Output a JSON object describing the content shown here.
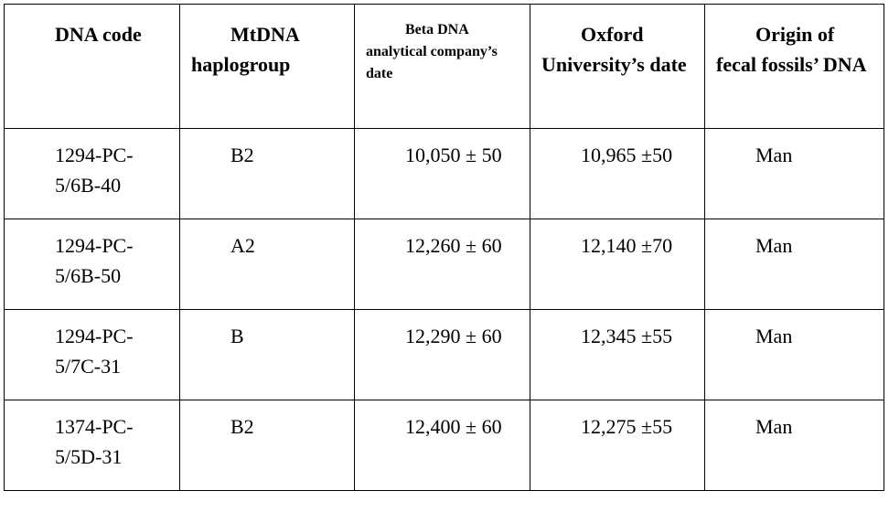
{
  "table": {
    "header": [
      "DNA code",
      "MtDNA haplogroup",
      "Beta DNA analytical company’s date",
      "Oxford University’s date",
      "Origin of fecal fossils’ DNA"
    ],
    "rows": [
      [
        "1294-PC-5/6B-40",
        "B2",
        "10,050 ± 50",
        "10,965 ±50",
        "Man"
      ],
      [
        "1294-PC-5/6B-50",
        "A2",
        "12,260 ± 60",
        "12,140 ±70",
        "Man"
      ],
      [
        "1294-PC-5/7C-31",
        "B",
        "12,290 ± 60",
        "12,345 ±55",
        "Man"
      ],
      [
        "1374-PC-5/5D-31",
        "B2",
        "12,400 ± 60",
        "12,275 ±55",
        "Man"
      ]
    ]
  }
}
